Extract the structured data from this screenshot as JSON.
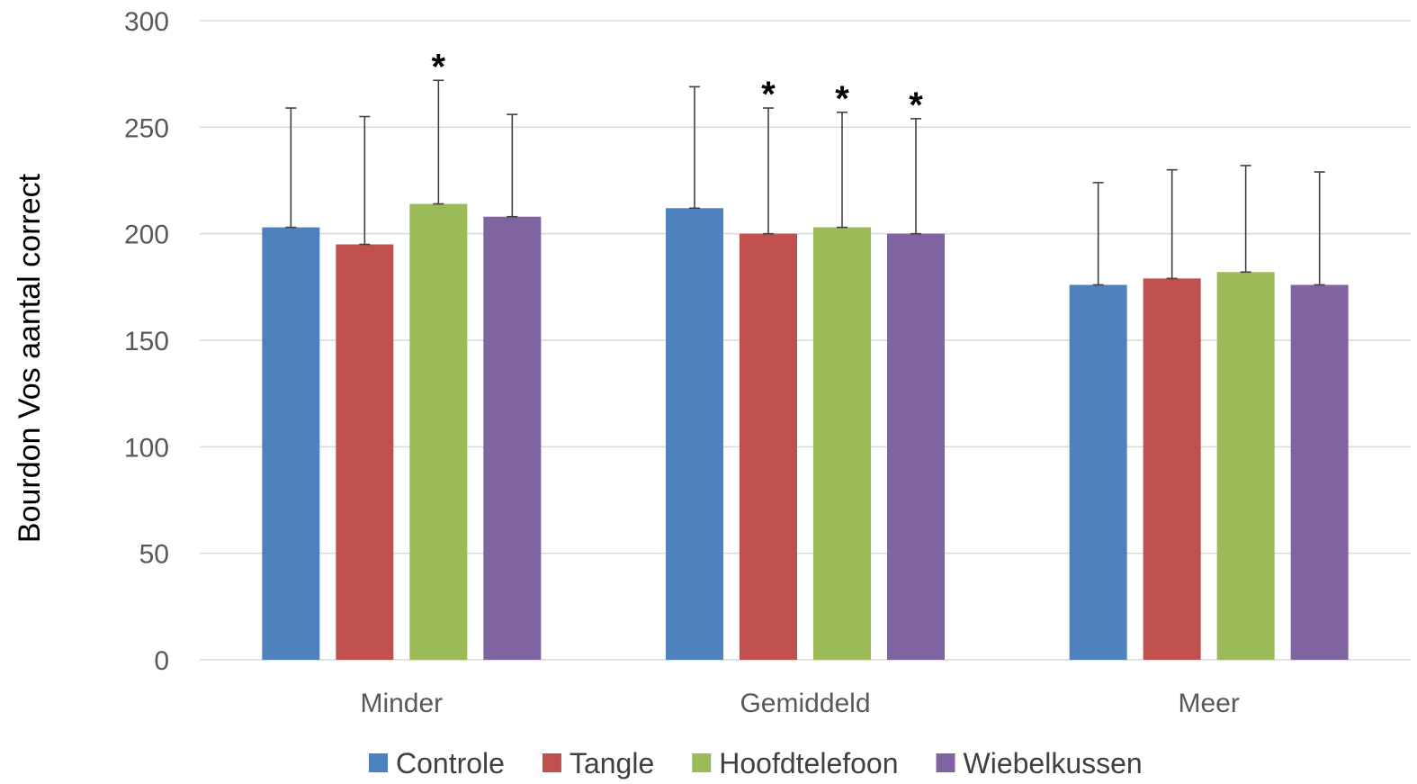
{
  "chart_data": {
    "type": "bar",
    "title": "",
    "xlabel": "",
    "ylabel": "Bourdon Vos aantal correct",
    "ylim": [
      0,
      300
    ],
    "yticks": [
      0,
      50,
      100,
      150,
      200,
      250,
      300
    ],
    "grid": true,
    "legend_position": "bottom",
    "categories": [
      "Minder",
      "Gemiddeld",
      "Meer"
    ],
    "series": [
      {
        "name": "Controle",
        "color": "#4f81bd",
        "values": [
          203,
          212,
          176
        ],
        "error_upper": [
          259,
          269,
          224
        ],
        "significant": [
          false,
          false,
          false
        ]
      },
      {
        "name": "Tangle",
        "color": "#c0504d",
        "values": [
          195,
          200,
          179
        ],
        "error_upper": [
          255,
          259,
          230
        ],
        "significant": [
          false,
          true,
          false
        ]
      },
      {
        "name": "Hoofdtelefoon",
        "color": "#9bbb59",
        "values": [
          214,
          203,
          182
        ],
        "error_upper": [
          272,
          257,
          232
        ],
        "significant": [
          true,
          true,
          false
        ]
      },
      {
        "name": "Wiebelkussen",
        "color": "#8064a2",
        "values": [
          208,
          200,
          176
        ],
        "error_upper": [
          256,
          254,
          229
        ],
        "significant": [
          false,
          true,
          false
        ]
      }
    ],
    "significance_marker": "*"
  }
}
